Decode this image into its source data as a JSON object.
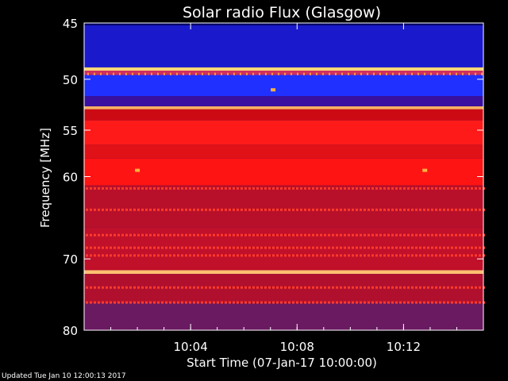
{
  "chart_data": {
    "type": "heatmap",
    "title": "Solar radio Flux (Glasgow)",
    "xlabel": "Start Time (07-Jan-17 10:00:00)",
    "ylabel": "Frequency [MHz]",
    "x_ticks": [
      "10:04",
      "10:08",
      "10:12"
    ],
    "y_ticks": [
      "45",
      "50",
      "55",
      "60",
      "70",
      "80"
    ],
    "y_scale": "log",
    "xlim_minutes": [
      0,
      15
    ],
    "ylim_mhz": [
      45,
      80
    ],
    "colormap": "blue-red-yellow-white",
    "bands": [
      {
        "from": 45.2,
        "to": 48.9,
        "color": "#1a1acc"
      },
      {
        "from": 48.9,
        "to": 49.2,
        "color": "#ffd87a"
      },
      {
        "from": 49.2,
        "to": 49.6,
        "color": "#d03060"
      },
      {
        "from": 49.6,
        "to": 51.6,
        "color": "#2030ff"
      },
      {
        "from": 51.6,
        "to": 52.6,
        "color": "#3a10a0"
      },
      {
        "from": 52.6,
        "to": 52.9,
        "color": "#ffb060"
      },
      {
        "from": 52.9,
        "to": 54.0,
        "color": "#cc0a14"
      },
      {
        "from": 54.0,
        "to": 56.5,
        "color": "#ff1a1a"
      },
      {
        "from": 56.5,
        "to": 58.0,
        "color": "#e01218"
      },
      {
        "from": 58.0,
        "to": 61.0,
        "color": "#ff1414"
      },
      {
        "from": 61.0,
        "to": 66.0,
        "color": "#b8102a"
      },
      {
        "from": 66.0,
        "to": 71.5,
        "color": "#c0102a"
      },
      {
        "from": 71.5,
        "to": 72.0,
        "color": "#ffc070"
      },
      {
        "from": 72.0,
        "to": 76.0,
        "color": "#b0102e"
      },
      {
        "from": 76.0,
        "to": 80.0,
        "color": "#6a1a60"
      }
    ],
    "interference_lines_mhz": [
      61.3,
      63.8,
      66.9,
      68.5,
      69.5,
      73.8,
      75.9
    ]
  },
  "footer": "Updated Tue Jan 10 12:00:13 2017"
}
